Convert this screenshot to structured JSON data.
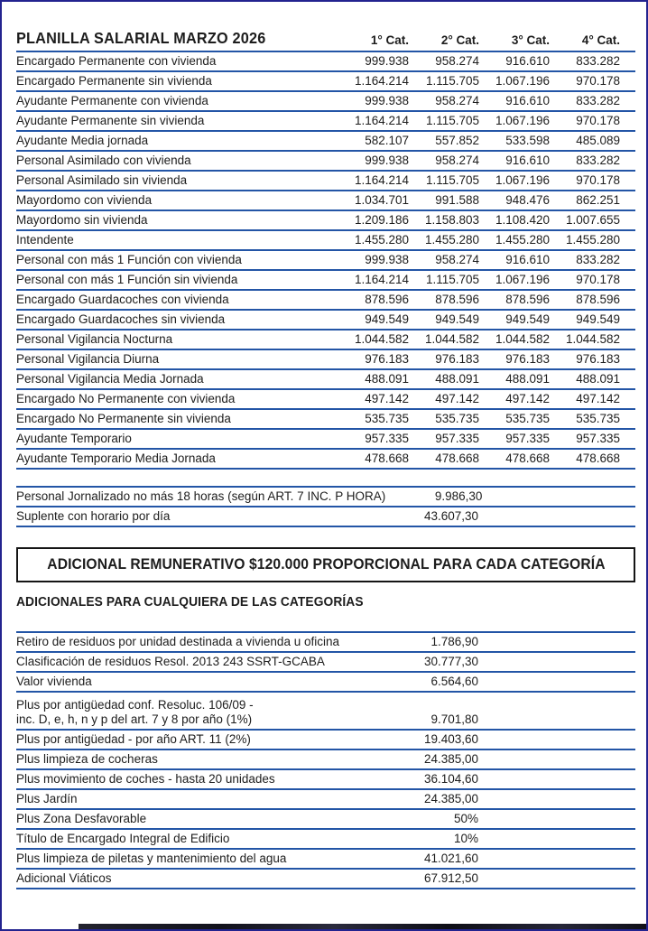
{
  "page": {
    "title": "PLANILLA SALARIAL MARZO 2026",
    "accent_blue": "#2355a6",
    "frame_color": "#23238f"
  },
  "salary_table": {
    "columns": [
      "1° Cat.",
      "2° Cat.",
      "3° Cat.",
      "4° Cat."
    ],
    "rows": [
      {
        "label": "Encargado Permanente con vivienda",
        "values": [
          "999.938",
          "958.274",
          "916.610",
          "833.282"
        ]
      },
      {
        "label": "Encargado Permanente sin vivienda",
        "values": [
          "1.164.214",
          "1.115.705",
          "1.067.196",
          "970.178"
        ]
      },
      {
        "label": "Ayudante Permanente con vivienda",
        "values": [
          "999.938",
          "958.274",
          "916.610",
          "833.282"
        ]
      },
      {
        "label": "Ayudante Permanente sin vivienda",
        "values": [
          "1.164.214",
          "1.115.705",
          "1.067.196",
          "970.178"
        ]
      },
      {
        "label": "Ayudante Media jornada",
        "values": [
          "582.107",
          "557.852",
          "533.598",
          "485.089"
        ]
      },
      {
        "label": "Personal Asimilado con vivienda",
        "values": [
          "999.938",
          "958.274",
          "916.610",
          "833.282"
        ]
      },
      {
        "label": "Personal Asimilado sin vivienda",
        "values": [
          "1.164.214",
          "1.115.705",
          "1.067.196",
          "970.178"
        ]
      },
      {
        "label": "Mayordomo con vivienda",
        "values": [
          "1.034.701",
          "991.588",
          "948.476",
          "862.251"
        ]
      },
      {
        "label": "Mayordomo sin vivienda",
        "values": [
          "1.209.186",
          "1.158.803",
          "1.108.420",
          "1.007.655"
        ]
      },
      {
        "label": "Intendente",
        "values": [
          "1.455.280",
          "1.455.280",
          "1.455.280",
          "1.455.280"
        ]
      },
      {
        "label": "Personal con más 1 Función con vivienda",
        "values": [
          "999.938",
          "958.274",
          "916.610",
          "833.282"
        ]
      },
      {
        "label": "Personal con más 1 Función sin vivienda",
        "values": [
          "1.164.214",
          "1.115.705",
          "1.067.196",
          "970.178"
        ]
      },
      {
        "label": "Encargado Guardacoches con vivienda",
        "values": [
          "878.596",
          "878.596",
          "878.596",
          "878.596"
        ]
      },
      {
        "label": "Encargado Guardacoches sin vivienda",
        "values": [
          "949.549",
          "949.549",
          "949.549",
          "949.549"
        ]
      },
      {
        "label": "Personal Vigilancia Nocturna",
        "values": [
          "1.044.582",
          "1.044.582",
          "1.044.582",
          "1.044.582"
        ]
      },
      {
        "label": "Personal Vigilancia Diurna",
        "values": [
          "976.183",
          "976.183",
          "976.183",
          "976.183"
        ]
      },
      {
        "label": "Personal Vigilancia Media Jornada",
        "values": [
          "488.091",
          "488.091",
          "488.091",
          "488.091"
        ]
      },
      {
        "label": "Encargado No Permanente con vivienda",
        "values": [
          "497.142",
          "497.142",
          "497.142",
          "497.142"
        ]
      },
      {
        "label": "Encargado No Permanente sin vivienda",
        "values": [
          "535.735",
          "535.735",
          "535.735",
          "535.735"
        ]
      },
      {
        "label": "Ayudante Temporario",
        "values": [
          "957.335",
          "957.335",
          "957.335",
          "957.335"
        ]
      },
      {
        "label": "Ayudante Temporario Media Jornada",
        "values": [
          "478.668",
          "478.668",
          "478.668",
          "478.668"
        ]
      }
    ]
  },
  "hourly_table": {
    "rows": [
      {
        "label": "Personal Jornalizado no más 18 horas (según ART. 7 INC. P HORA)",
        "value": "9.986,30"
      },
      {
        "label": "Suplente con horario por día",
        "value": "43.607,30"
      }
    ]
  },
  "banner": {
    "text": "ADICIONAL REMUNERATIVO $120.000 PROPORCIONAL PARA CADA CATEGORÍA"
  },
  "adicionales": {
    "heading": "ADICIONALES PARA CUALQUIERA DE LAS CATEGORÍAS",
    "rows": [
      {
        "label": "Retiro de residuos por unidad destinada a vivienda u oficina",
        "value": "1.786,90"
      },
      {
        "label": "Clasificación de residuos Resol. 2013 243 SSRT-GCABA",
        "value": "30.777,30"
      },
      {
        "label": "Valor vivienda",
        "value": "6.564,60"
      },
      {
        "label": "Plus por antigüedad conf. Resoluc. 106/09 -\ninc. D, e, h, n y p del art. 7 y 8 por año (1%)",
        "value": "9.701,80",
        "two_line": true
      },
      {
        "label": "Plus por antigüedad - por año ART. 11 (2%)",
        "value": "19.403,60"
      },
      {
        "label": "Plus limpieza de cocheras",
        "value": "24.385,00"
      },
      {
        "label": "Plus movimiento de coches - hasta 20 unidades",
        "value": "36.104,60"
      },
      {
        "label": "Plus Jardín",
        "value": "24.385,00"
      },
      {
        "label": "Plus Zona Desfavorable",
        "value": "50%"
      },
      {
        "label": "Título de Encargado Integral de Edificio",
        "value": "10%"
      },
      {
        "label": "Plus limpieza de piletas y mantenimiento del agua",
        "value": "41.021,60"
      },
      {
        "label": "Adicional Viáticos",
        "value": "67.912,50"
      }
    ]
  }
}
